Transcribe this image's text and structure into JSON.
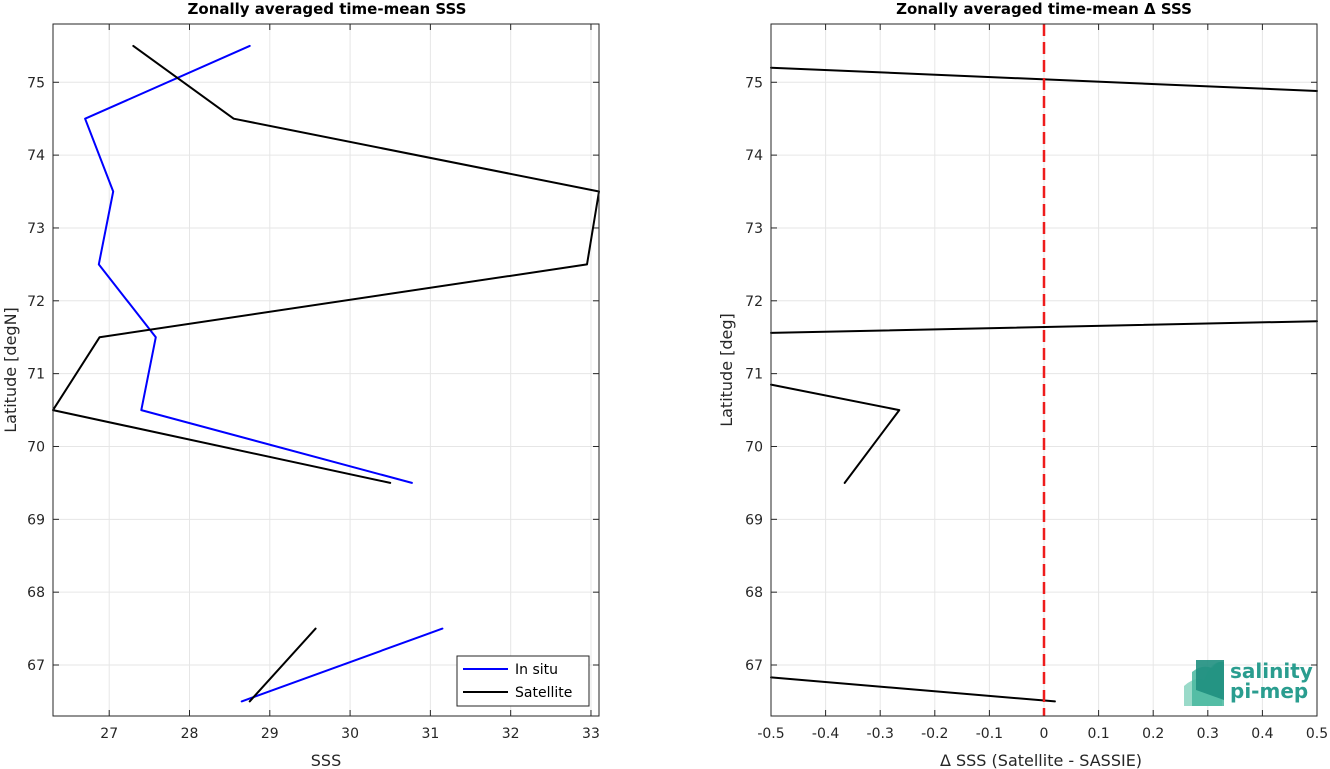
{
  "chart_data": [
    {
      "type": "line",
      "title": "Zonally averaged time-mean SSS",
      "xlabel": "SSS",
      "ylabel": "Latitude [degN]",
      "xlim": [
        26.3,
        33.1
      ],
      "ylim": [
        66.3,
        75.8
      ],
      "xticks": [
        27,
        28,
        29,
        30,
        31,
        32,
        33
      ],
      "yticks": [
        67,
        68,
        69,
        70,
        71,
        72,
        73,
        74,
        75
      ],
      "grid": true,
      "legend": "bottom-right",
      "series": [
        {
          "name": "In situ",
          "color": "#0000ff",
          "segments": [
            [
              [
                28.75,
                75.5
              ],
              [
                26.7,
                74.5
              ],
              [
                27.05,
                73.5
              ],
              [
                26.87,
                72.5
              ],
              [
                27.58,
                71.5
              ],
              [
                27.4,
                70.5
              ],
              [
                30.77,
                69.5
              ]
            ],
            [
              [
                31.15,
                67.5
              ],
              [
                28.65,
                66.5
              ]
            ]
          ]
        },
        {
          "name": "Satellite",
          "color": "#000000",
          "segments": [
            [
              [
                27.3,
                75.5
              ],
              [
                28.55,
                74.5
              ],
              [
                33.1,
                73.5
              ],
              [
                32.95,
                72.5
              ],
              [
                26.88,
                71.5
              ],
              [
                26.3,
                70.5
              ],
              [
                30.5,
                69.5
              ]
            ],
            [
              [
                29.57,
                67.5
              ],
              [
                28.75,
                66.5
              ]
            ]
          ]
        }
      ]
    },
    {
      "type": "line",
      "title": "Zonally averaged time-mean Δ SSS",
      "xlabel": "Δ SSS (Satellite - SASSIE)",
      "ylabel": "Latitude [deg]",
      "xlim": [
        -0.5,
        0.5
      ],
      "ylim": [
        66.3,
        75.8
      ],
      "xticks": [
        "-0.5",
        "-0.4",
        "-0.3",
        "-0.2",
        "-0.1",
        "0",
        "0.1",
        "0.2",
        "0.3",
        "0.4",
        "0.5"
      ],
      "yticks": [
        67,
        68,
        69,
        70,
        71,
        72,
        73,
        74,
        75
      ],
      "grid": true,
      "zero_line_color": "#ee1c1c",
      "series": [
        {
          "color": "#000000",
          "segments": [
            [
              [
                -0.5,
                75.2
              ],
              [
                0.5,
                74.88
              ]
            ],
            [
              [
                -0.5,
                71.56
              ],
              [
                0.5,
                71.72
              ]
            ],
            [
              [
                -0.5,
                70.85
              ],
              [
                -0.265,
                70.5
              ],
              [
                -0.365,
                69.5
              ]
            ],
            [
              [
                -0.5,
                66.83
              ],
              [
                0.02,
                66.5
              ]
            ]
          ]
        }
      ]
    }
  ],
  "logo": {
    "line1": "salinity",
    "line2": "pi-mep"
  }
}
